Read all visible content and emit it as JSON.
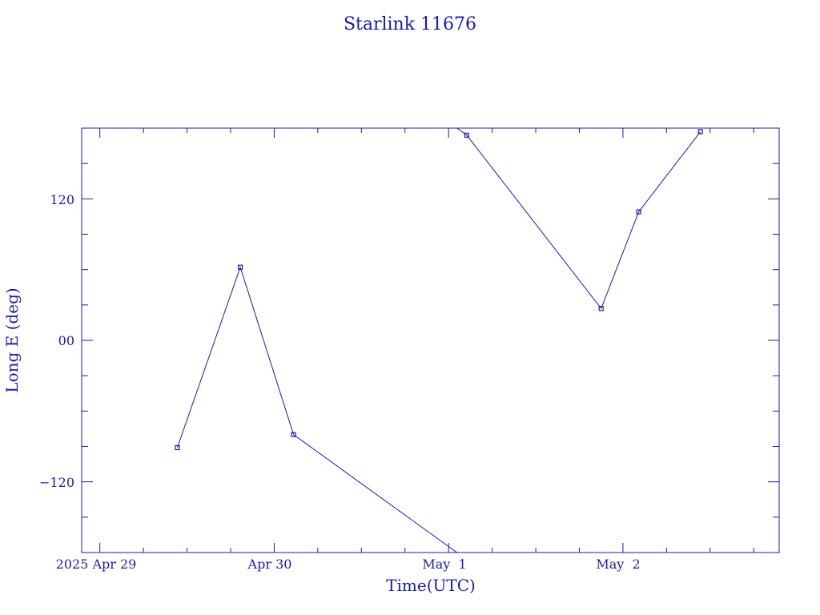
{
  "chart_data": {
    "type": "line",
    "title": "Starlink 11676",
    "xlabel": "Time(UTC)",
    "ylabel": "Long E (deg)",
    "x_tick_labels": [
      "2025 Apr 29",
      "Apr 30",
      "May  1",
      "May  2"
    ],
    "y_tick_labels": [
      "120",
      "00",
      "−120"
    ],
    "xlim": [
      "2025-04-28T21:30",
      "2025-05-02T21:30"
    ],
    "ylim": [
      -180,
      180
    ],
    "x_major_ticks": [
      "2025-04-29T00:00",
      "2025-04-30T00:00",
      "2025-05-01T00:00",
      "2025-05-02T00:00"
    ],
    "y_major_ticks": [
      120,
      0,
      -120
    ],
    "grid": false,
    "color": "#1c1ca0",
    "series": [
      {
        "points": [
          {
            "x": "2025-04-29T10:40",
            "y": -91
          },
          {
            "x": "2025-04-29T19:20",
            "y": 62
          },
          {
            "x": "2025-04-30T02:40",
            "y": -80
          },
          {
            "x": "2025-05-01T02:30",
            "y": 174
          },
          {
            "x": "2025-05-01T21:00",
            "y": 27
          },
          {
            "x": "2025-05-02T02:10",
            "y": 109
          },
          {
            "x": "2025-05-02T10:40",
            "y": 177
          }
        ]
      }
    ]
  }
}
